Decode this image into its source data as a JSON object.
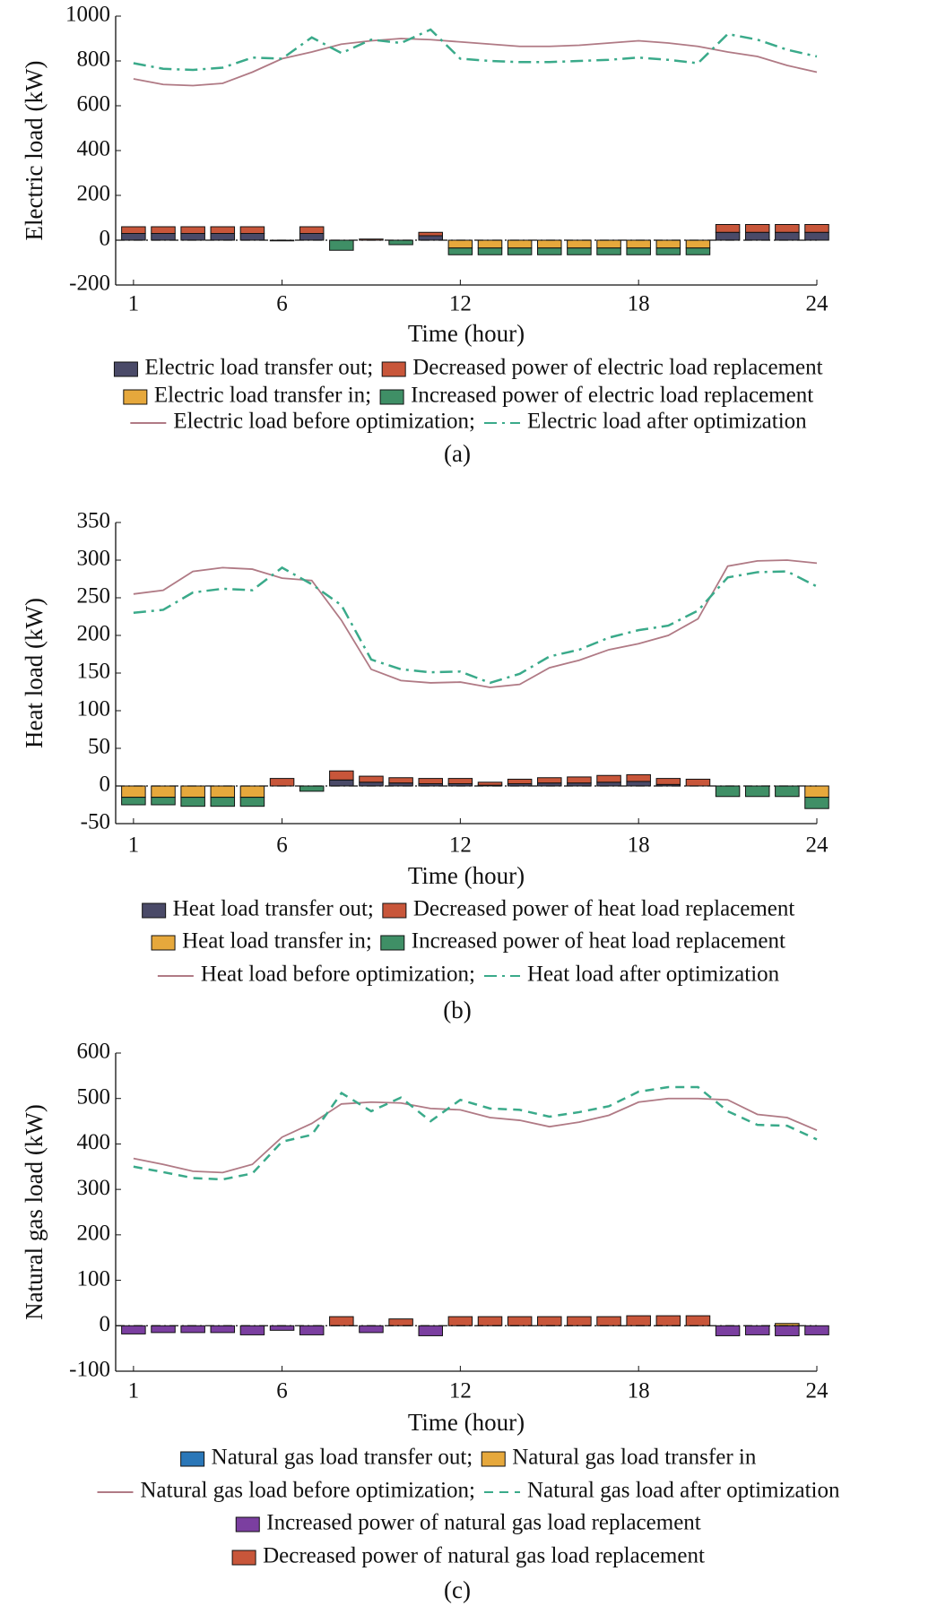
{
  "chart_data": [
    {
      "type": "combo",
      "y_label": "Electric load (kW)",
      "x_label": "Time (hour)",
      "caption": "(a)",
      "x": [
        1,
        2,
        3,
        4,
        5,
        6,
        7,
        8,
        9,
        10,
        11,
        12,
        13,
        14,
        15,
        16,
        17,
        18,
        19,
        20,
        21,
        22,
        23,
        24
      ],
      "xlim": [
        0.4,
        24
      ],
      "xticks": [
        1,
        6,
        12,
        18,
        24
      ],
      "ylim": [
        -200,
        1000
      ],
      "yticks": [
        -200,
        0,
        200,
        400,
        600,
        800,
        1000
      ],
      "series": [
        {
          "name": "Electric load transfer out;",
          "type": "bar",
          "color": "#4a4a68",
          "values": [
            30,
            30,
            30,
            30,
            30,
            -3,
            30,
            0,
            0,
            0,
            20,
            0,
            0,
            0,
            0,
            0,
            0,
            0,
            0,
            0,
            35,
            35,
            35,
            35
          ]
        },
        {
          "name": "Decreased power of electric load replacement",
          "type": "bar",
          "color": "#c8563a",
          "values": [
            30,
            30,
            30,
            30,
            30,
            0,
            30,
            0,
            5,
            0,
            15,
            0,
            0,
            0,
            0,
            0,
            0,
            0,
            0,
            0,
            35,
            35,
            35,
            35
          ]
        },
        {
          "name": "Electric load transfer in;",
          "type": "bar",
          "color": "#e6a83c",
          "values": [
            0,
            0,
            0,
            0,
            0,
            0,
            0,
            0,
            0,
            0,
            0,
            -35,
            -35,
            -35,
            -35,
            -35,
            -35,
            -35,
            -35,
            -35,
            0,
            0,
            0,
            0
          ]
        },
        {
          "name": "Increased power of electric load replacement",
          "type": "bar",
          "color": "#3f8f66",
          "values": [
            0,
            0,
            0,
            0,
            0,
            0,
            0,
            -45,
            0,
            -20,
            0,
            -30,
            -30,
            -30,
            -30,
            -30,
            -30,
            -30,
            -30,
            -30,
            0,
            0,
            0,
            0
          ]
        },
        {
          "name": "Electric load before optimization;",
          "type": "line",
          "color": "#b07a85",
          "dash": "solid",
          "values": [
            720,
            695,
            690,
            700,
            750,
            810,
            840,
            875,
            890,
            900,
            895,
            885,
            875,
            865,
            865,
            870,
            880,
            890,
            880,
            865,
            840,
            820,
            780,
            750
          ]
        },
        {
          "name": "Electric load after optimization",
          "type": "line",
          "color": "#3aaa8a",
          "dash": "dashdot",
          "values": [
            790,
            765,
            760,
            770,
            815,
            810,
            905,
            835,
            895,
            880,
            940,
            810,
            800,
            795,
            795,
            800,
            805,
            815,
            805,
            790,
            920,
            895,
            850,
            820
          ]
        }
      ]
    },
    {
      "type": "combo",
      "y_label": "Heat load (kW)",
      "x_label": "Time (hour)",
      "caption": "(b)",
      "x": [
        1,
        2,
        3,
        4,
        5,
        6,
        7,
        8,
        9,
        10,
        11,
        12,
        13,
        14,
        15,
        16,
        17,
        18,
        19,
        20,
        21,
        22,
        23,
        24
      ],
      "xlim": [
        0.4,
        24
      ],
      "xticks": [
        1,
        6,
        12,
        18,
        24
      ],
      "ylim": [
        -50,
        350
      ],
      "yticks": [
        -50,
        0,
        50,
        100,
        150,
        200,
        250,
        300,
        350
      ],
      "series": [
        {
          "name": "Heat load transfer out;",
          "type": "bar",
          "color": "#4a4a68",
          "values": [
            0,
            0,
            0,
            0,
            0,
            0,
            0,
            8,
            5,
            4,
            3,
            3,
            1,
            3,
            4,
            4,
            5,
            6,
            2,
            0,
            0,
            0,
            0,
            0
          ]
        },
        {
          "name": "Decreased power of heat load replacement",
          "type": "bar",
          "color": "#c8563a",
          "values": [
            0,
            0,
            0,
            0,
            0,
            10,
            0,
            12,
            8,
            7,
            7,
            7,
            4,
            6,
            7,
            8,
            9,
            9,
            8,
            9,
            0,
            0,
            0,
            0
          ]
        },
        {
          "name": "Heat load transfer in;",
          "type": "bar",
          "color": "#e6a83c",
          "values": [
            -15,
            -15,
            -15,
            -15,
            -15,
            0,
            0,
            0,
            0,
            0,
            0,
            0,
            0,
            0,
            0,
            0,
            0,
            0,
            0,
            0,
            0,
            0,
            0,
            -15
          ]
        },
        {
          "name": "Increased power of heat load replacement",
          "type": "bar",
          "color": "#3f8f66",
          "values": [
            -10,
            -10,
            -12,
            -12,
            -12,
            0,
            -7,
            0,
            0,
            0,
            0,
            0,
            0,
            0,
            0,
            0,
            0,
            0,
            0,
            0,
            -14,
            -14,
            -14,
            -15
          ]
        },
        {
          "name": "Heat load before optimization;",
          "type": "line",
          "color": "#b07a85",
          "dash": "solid",
          "values": [
            255,
            260,
            285,
            290,
            288,
            276,
            273,
            220,
            155,
            140,
            137,
            138,
            131,
            135,
            157,
            167,
            181,
            189,
            200,
            222,
            292,
            299,
            300,
            296
          ]
        },
        {
          "name": "Heat load after optimization",
          "type": "line",
          "color": "#3aaa8a",
          "dash": "dashdot",
          "values": [
            230,
            234,
            257,
            262,
            260,
            290,
            268,
            240,
            168,
            155,
            151,
            152,
            137,
            149,
            172,
            181,
            197,
            207,
            213,
            233,
            277,
            284,
            285,
            265
          ]
        }
      ]
    },
    {
      "type": "combo",
      "y_label": "Natural gas load (kW)",
      "x_label": "Time (hour)",
      "caption": "(c)",
      "x": [
        1,
        2,
        3,
        4,
        5,
        6,
        7,
        8,
        9,
        10,
        11,
        12,
        13,
        14,
        15,
        16,
        17,
        18,
        19,
        20,
        21,
        22,
        23,
        24
      ],
      "xlim": [
        0.4,
        24
      ],
      "xticks": [
        1,
        6,
        12,
        18,
        24
      ],
      "ylim": [
        -100,
        600
      ],
      "yticks": [
        -100,
        0,
        100,
        200,
        300,
        400,
        500,
        600
      ],
      "series": [
        {
          "name": "Natural gas load transfer out;",
          "type": "bar",
          "color": "#2a77b8",
          "values": [
            0,
            0,
            0,
            0,
            0,
            0,
            0,
            0,
            0,
            0,
            0,
            0,
            0,
            0,
            0,
            0,
            0,
            0,
            0,
            0,
            0,
            0,
            0,
            0
          ]
        },
        {
          "name": "Natural gas load transfer in",
          "type": "bar",
          "color": "#e6a83c",
          "values": [
            0,
            0,
            0,
            0,
            0,
            0,
            0,
            0,
            0,
            0,
            0,
            0,
            0,
            0,
            0,
            0,
            0,
            0,
            0,
            0,
            0,
            0,
            5,
            0
          ]
        },
        {
          "name": "Increased power of natural gas load replacement",
          "type": "bar",
          "color": "#7b3fa0",
          "values": [
            -18,
            -15,
            -15,
            -15,
            -20,
            -10,
            -20,
            0,
            -15,
            0,
            -22,
            0,
            0,
            0,
            0,
            0,
            0,
            0,
            0,
            0,
            -22,
            -20,
            -22,
            -20
          ]
        },
        {
          "name": "Decreased power of natural gas load replacement",
          "type": "bar",
          "color": "#c8563a",
          "values": [
            0,
            0,
            0,
            0,
            0,
            0,
            0,
            20,
            0,
            15,
            0,
            20,
            20,
            20,
            20,
            20,
            20,
            22,
            22,
            22,
            0,
            0,
            0,
            0
          ]
        },
        {
          "name": "Natural gas load before optimization;",
          "type": "line",
          "color": "#b07a85",
          "dash": "solid",
          "values": [
            368,
            355,
            340,
            337,
            355,
            415,
            445,
            488,
            492,
            490,
            478,
            475,
            458,
            452,
            438,
            448,
            463,
            492,
            500,
            500,
            497,
            465,
            458,
            430
          ]
        },
        {
          "name": "Natural gas load after optimization",
          "type": "line",
          "color": "#3aaa8a",
          "dash": "dash",
          "values": [
            350,
            338,
            325,
            322,
            335,
            405,
            420,
            512,
            472,
            502,
            450,
            497,
            478,
            475,
            460,
            470,
            483,
            515,
            525,
            525,
            472,
            442,
            440,
            410
          ]
        }
      ]
    }
  ]
}
